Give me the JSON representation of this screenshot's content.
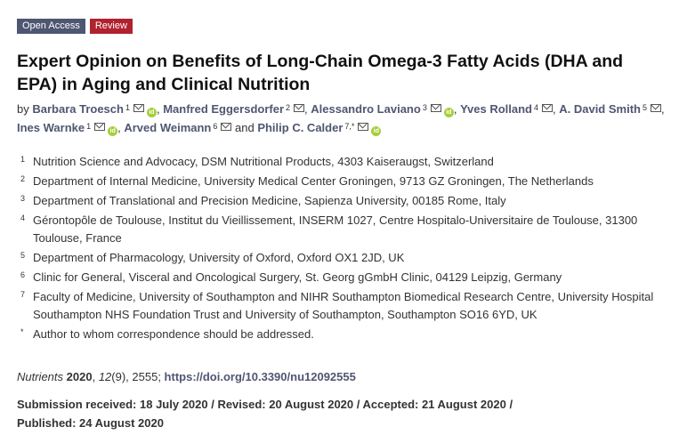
{
  "badges": {
    "open_access": "Open Access",
    "review": "Review"
  },
  "title": "Expert Opinion on Benefits of Long-Chain Omega-3 Fatty Acids (DHA and EPA) in Aging and Clinical Nutrition",
  "byline": {
    "by": "by",
    "and": "and",
    "authors": [
      {
        "name": "Barbara Troesch",
        "sup": "1",
        "orcid": true
      },
      {
        "name": "Manfred Eggersdorfer",
        "sup": "2",
        "orcid": false
      },
      {
        "name": "Alessandro Laviano",
        "sup": "3",
        "orcid": true
      },
      {
        "name": "Yves Rolland",
        "sup": "4",
        "orcid": false
      },
      {
        "name": "A. David Smith",
        "sup": "5",
        "orcid": false
      },
      {
        "name": "Ines Warnke",
        "sup": "1",
        "orcid": true
      },
      {
        "name": "Arved Weimann",
        "sup": "6",
        "orcid": false
      },
      {
        "name": "Philip C. Calder",
        "sup": "7,*",
        "orcid": true
      }
    ]
  },
  "affiliations": [
    {
      "num": "1",
      "text": "Nutrition Science and Advocacy, DSM Nutritional Products, 4303 Kaiseraugst, Switzerland"
    },
    {
      "num": "2",
      "text": "Department of Internal Medicine, University Medical Center Groningen, 9713 GZ Groningen, The Netherlands"
    },
    {
      "num": "3",
      "text": "Department of Translational and Precision Medicine, Sapienza University, 00185 Rome, Italy"
    },
    {
      "num": "4",
      "text": "Gérontopôle de Toulouse, Institut du Vieillissement, INSERM 1027, Centre Hospitalo-Universitaire de Toulouse, 31300 Toulouse, France"
    },
    {
      "num": "5",
      "text": "Department of Pharmacology, University of Oxford, Oxford OX1 2JD, UK"
    },
    {
      "num": "6",
      "text": "Clinic for General, Visceral and Oncological Surgery, St. Georg gGmbH Clinic, 04129 Leipzig, Germany"
    },
    {
      "num": "7",
      "text": "Faculty of Medicine, University of Southampton and NIHR Southampton Biomedical Research Centre, University Hospital Southampton NHS Foundation Trust and University of Southampton, Southampton SO16 6YD, UK"
    },
    {
      "num": "*",
      "text": "Author to whom correspondence should be addressed."
    }
  ],
  "citation": {
    "journal": "Nutrients",
    "year": "2020",
    "volume": "12",
    "issue": "(9)",
    "article": ", 2555; ",
    "doi": "https://doi.org/10.3390/nu12092555"
  },
  "dates": {
    "text": "Submission received: 18 July 2020 / Revised: 20 August 2020 / Accepted: 21 August 2020 / Published: 24 August 2020"
  },
  "colors": {
    "link": "#4f5671",
    "open_access_badge": "#4f5671",
    "review_badge": "#b1222f",
    "orcid": "#a6ce39"
  }
}
